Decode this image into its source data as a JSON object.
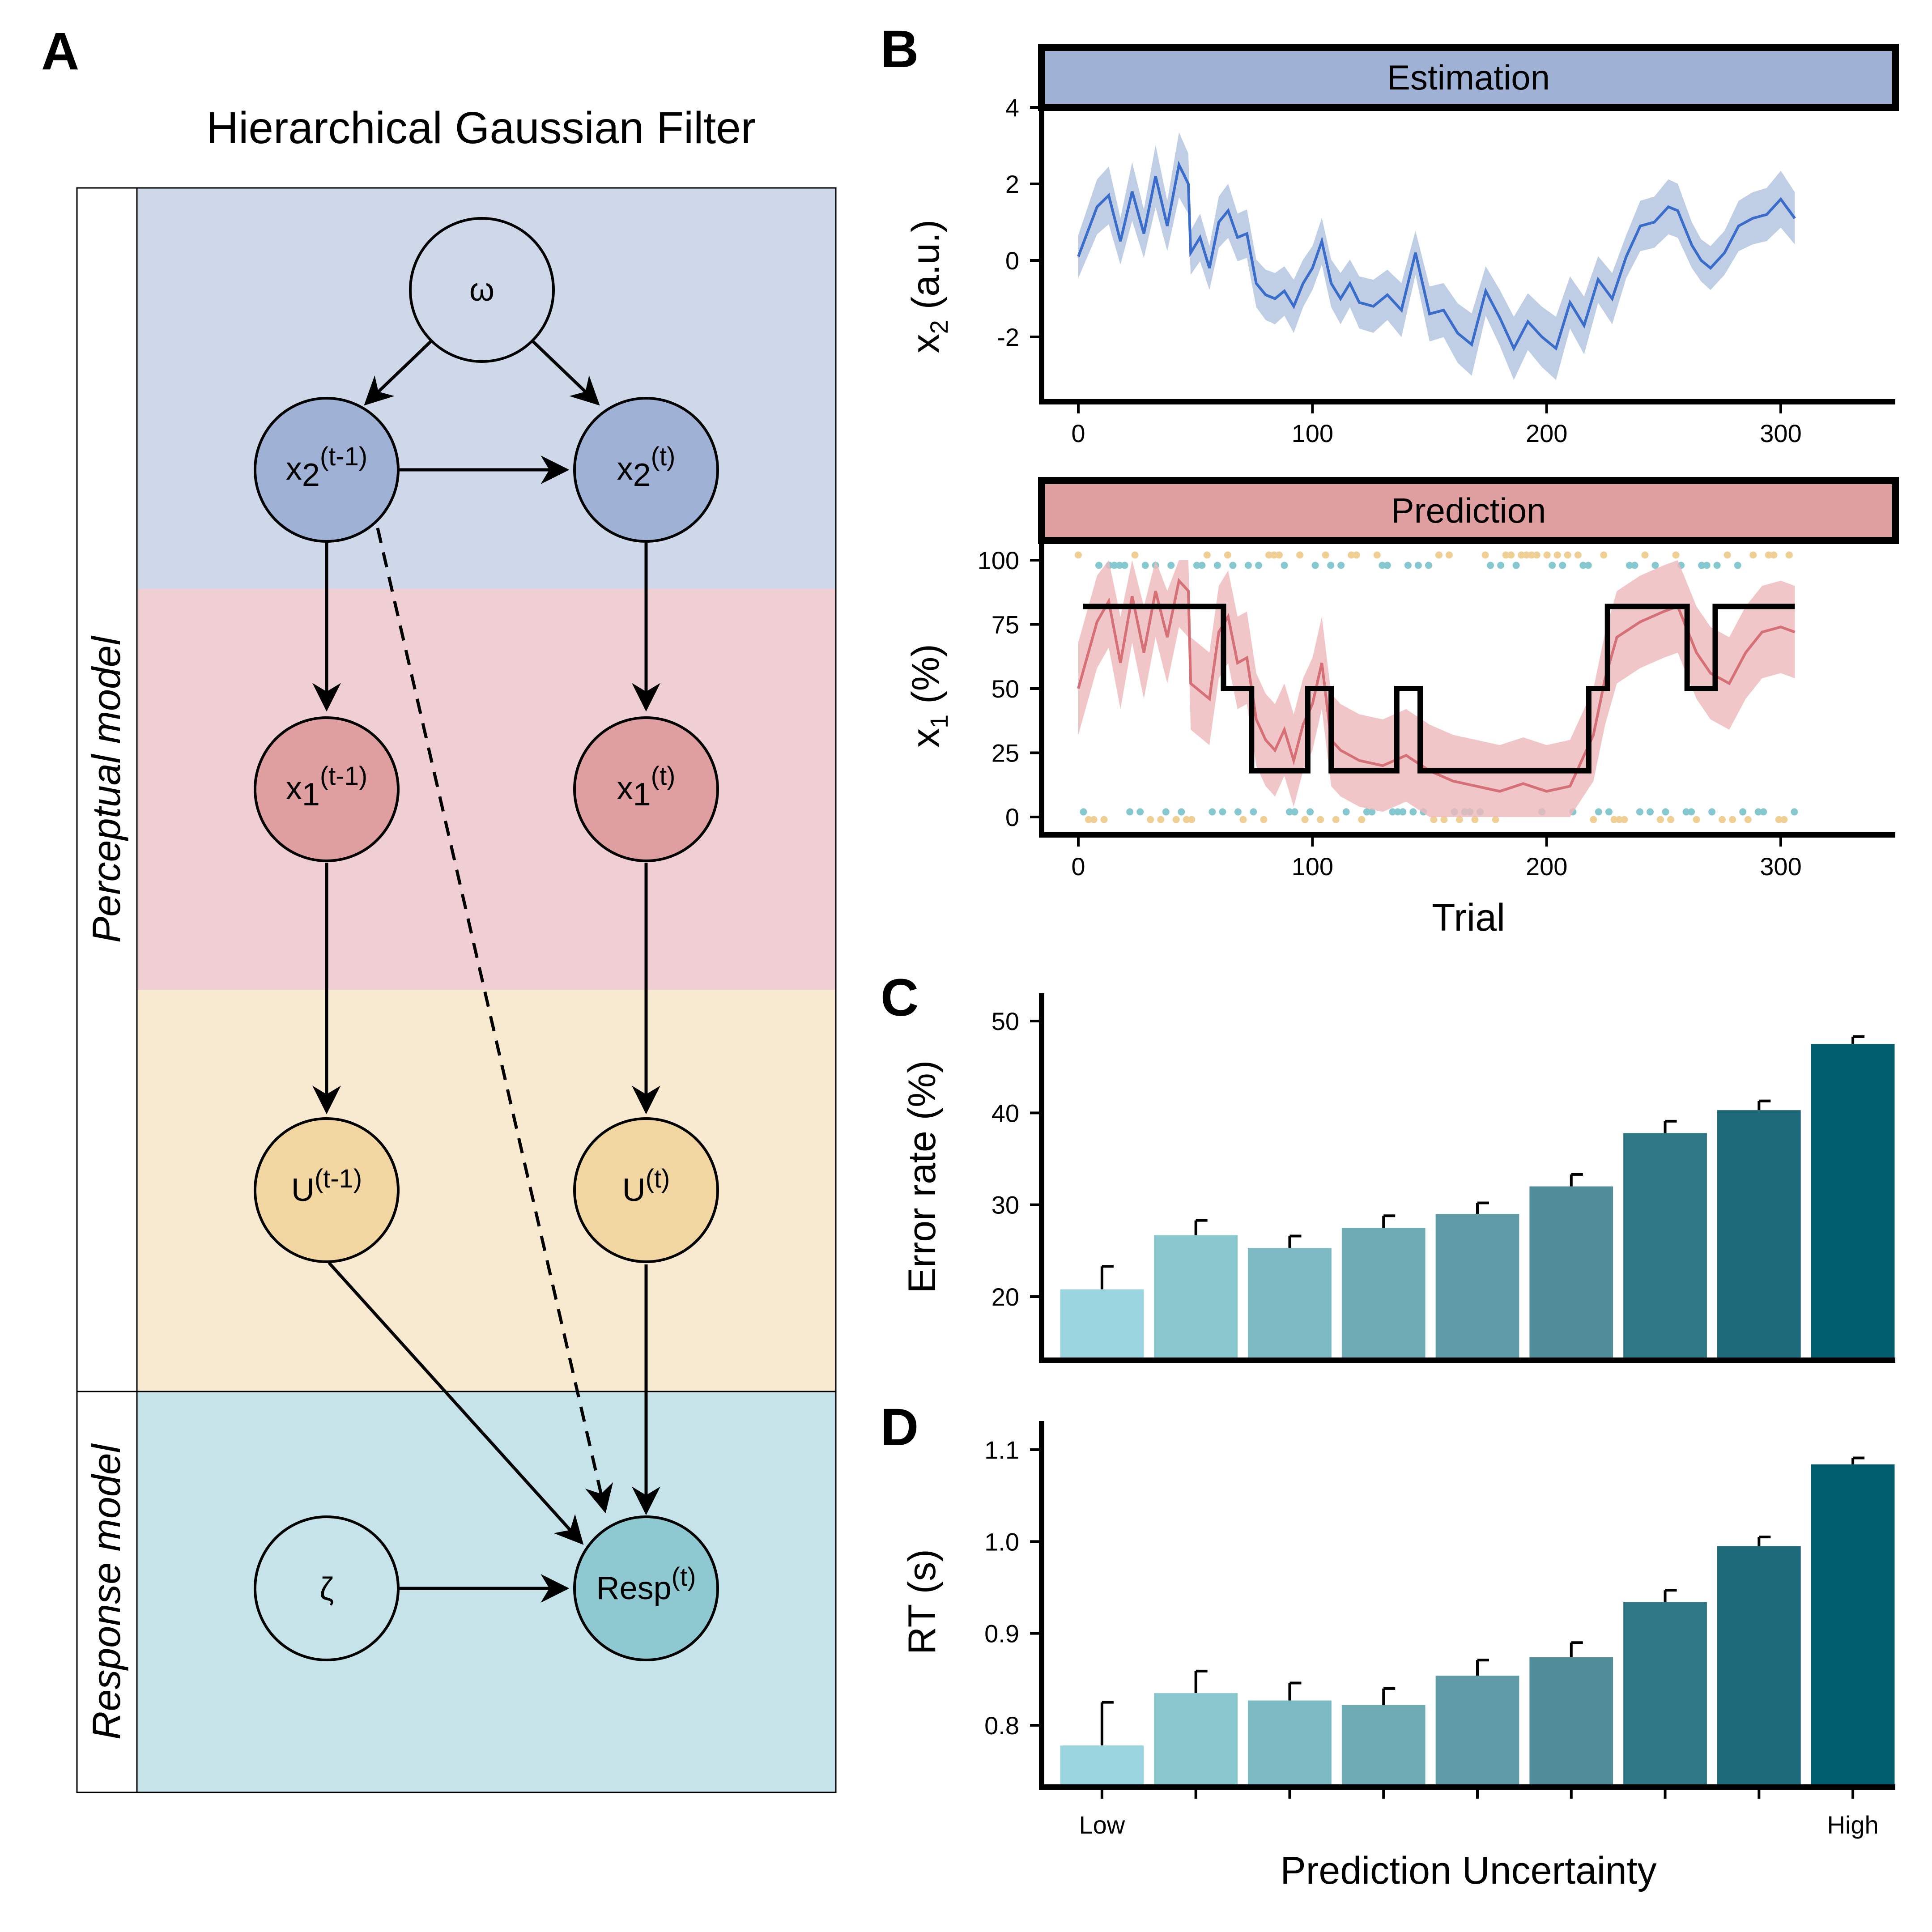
{
  "colors": {
    "estimation_band": "#cfd8e8",
    "prediction_band": "#efcfd3",
    "input_band": "#f8e9d1",
    "response_band": "#c5e3e8",
    "x2_node": "#9fb2d6",
    "x1_node": "#df9ea0",
    "u_node": "#f2d6a2",
    "resp_node": "#8ec8d0",
    "x2_line": "#3a6dc9",
    "x2_ribbon": "#a9bcdc",
    "x1_line": "#d47076",
    "x1_ribbon": "#eeb8bc",
    "dots_a": "#f0cf94",
    "dots_b": "#86c8cf",
    "bars": [
      "#9bd6e0",
      "#8ac8d0",
      "#7bbac2",
      "#6eabb5",
      "#5f9ca7",
      "#508d99",
      "#2f7785",
      "#1e6a7a",
      "#005e6e"
    ]
  },
  "panel_a": {
    "letter": "A",
    "title": "Hierarchical Gaussian Filter",
    "side_labels": {
      "perceptual": "Perceptual model",
      "response": "Response model"
    },
    "nodes": {
      "omega": "ω",
      "zeta": "ζ",
      "x2_prev": {
        "base": "x",
        "sub": "2",
        "sup": "(t-1)"
      },
      "x2_cur": {
        "base": "x",
        "sub": "2",
        "sup": "(t)"
      },
      "x1_prev": {
        "base": "x",
        "sub": "1",
        "sup": "(t-1)"
      },
      "x1_cur": {
        "base": "x",
        "sub": "1",
        "sup": "(t)"
      },
      "u_prev": {
        "base": "U",
        "sup": "(t-1)"
      },
      "u_cur": {
        "base": "U",
        "sup": "(t)"
      },
      "resp": {
        "base": "Resp",
        "sup": "(t)"
      }
    },
    "icons": [
      "arrow-icon",
      "dashed-arrow-icon"
    ]
  },
  "panel_b": {
    "letter": "B",
    "estimation": {
      "strip_label": "Estimation",
      "ylabel": {
        "base": "x",
        "sub": "2",
        "rest": " (a.u.)"
      },
      "yticks": [
        "4",
        "2",
        "0",
        "-2"
      ],
      "xticks": [
        "0",
        "100",
        "200",
        "300"
      ]
    },
    "prediction": {
      "strip_label": "Prediction",
      "ylabel": {
        "base": "x",
        "sub": "1",
        "rest": " (%)"
      },
      "yticks": [
        "100",
        "75",
        "50",
        "25",
        "0"
      ],
      "xticks": [
        "0",
        "100",
        "200",
        "300"
      ],
      "xlabel": "Trial"
    }
  },
  "panel_c": {
    "letter": "C",
    "ylabel": "Error rate (%)",
    "yticks": [
      "50",
      "40",
      "30",
      "20"
    ]
  },
  "panel_d": {
    "letter": "D",
    "ylabel": "RT (s)",
    "yticks": [
      "1.1",
      "1.0",
      "0.9",
      "0.8"
    ],
    "xtick_low": "Low",
    "xtick_high": "High",
    "xlabel": "Prediction Uncertainty"
  },
  "chart_data": [
    {
      "type": "line",
      "panel": "B-estimation",
      "xlim": [
        0,
        310
      ],
      "ylim": [
        -3.7,
        4
      ],
      "series": [
        {
          "x": [
            0,
            8,
            13,
            18,
            23,
            28,
            33,
            38,
            43,
            47,
            48,
            52,
            56,
            60,
            64,
            68,
            72,
            76,
            80,
            84,
            88,
            92,
            96,
            100,
            104,
            108,
            112,
            116,
            120,
            126,
            132,
            138,
            144,
            150,
            156,
            162,
            168,
            174,
            180,
            186,
            192,
            198,
            204,
            210,
            216,
            222,
            228,
            234,
            240,
            246,
            252,
            256,
            262,
            266,
            270,
            276,
            282,
            288,
            294,
            300,
            306
          ],
          "y": [
            0.1,
            1.4,
            1.7,
            0.5,
            1.8,
            0.7,
            2.2,
            0.9,
            2.5,
            2.0,
            0.2,
            0.6,
            -0.2,
            1.0,
            1.3,
            0.6,
            0.7,
            -0.6,
            -0.9,
            -1.0,
            -0.8,
            -1.2,
            -0.6,
            -0.2,
            0.5,
            -0.6,
            -1.0,
            -0.6,
            -1.1,
            -1.2,
            -0.9,
            -1.3,
            0.2,
            -1.4,
            -1.3,
            -1.9,
            -2.2,
            -0.8,
            -1.5,
            -2.3,
            -1.6,
            -2.0,
            -2.3,
            -1.1,
            -1.7,
            -0.5,
            -1.0,
            0.1,
            0.9,
            1.0,
            1.4,
            1.3,
            0.4,
            0.0,
            -0.2,
            0.2,
            0.9,
            1.1,
            1.2,
            1.6,
            1.1
          ]
        }
      ]
    },
    {
      "type": "line",
      "panel": "B-prediction",
      "xlim": [
        0,
        310
      ],
      "ylim": [
        -5,
        105
      ],
      "series": [
        {
          "name_hidden": "x1 estimate",
          "x": [
            0,
            8,
            13,
            18,
            23,
            28,
            33,
            38,
            43,
            47,
            48,
            56,
            60,
            64,
            68,
            72,
            76,
            80,
            84,
            88,
            92,
            96,
            100,
            104,
            108,
            112,
            120,
            130,
            140,
            150,
            160,
            170,
            180,
            190,
            200,
            210,
            220,
            225,
            230,
            240,
            250,
            256,
            264,
            270,
            278,
            285,
            292,
            300,
            306
          ],
          "y": [
            50,
            76,
            84,
            60,
            86,
            64,
            88,
            70,
            92,
            88,
            52,
            46,
            72,
            78,
            60,
            62,
            38,
            30,
            26,
            34,
            22,
            36,
            44,
            60,
            30,
            26,
            22,
            20,
            24,
            18,
            14,
            12,
            10,
            13,
            10,
            12,
            32,
            54,
            70,
            76,
            80,
            82,
            64,
            56,
            52,
            64,
            72,
            74,
            72
          ]
        },
        {
          "name_hidden": "true probability",
          "x": [
            2,
            62,
            62,
            74,
            74,
            98,
            98,
            108,
            108,
            136,
            136,
            146,
            146,
            218,
            218,
            226,
            226,
            260,
            260,
            272,
            272,
            306
          ],
          "y": [
            82,
            82,
            50,
            50,
            18,
            18,
            50,
            50,
            18,
            18,
            50,
            50,
            18,
            18,
            50,
            50,
            82,
            82,
            50,
            50,
            82,
            82
          ]
        }
      ]
    },
    {
      "type": "bar",
      "panel": "C",
      "categories": [
        "1",
        "2",
        "3",
        "4",
        "5",
        "6",
        "7",
        "8",
        "9"
      ],
      "values": [
        20.8,
        26.7,
        25.3,
        27.5,
        29.0,
        32.0,
        37.8,
        40.3,
        47.5
      ],
      "error": [
        2.5,
        1.6,
        1.3,
        1.3,
        1.2,
        1.3,
        1.3,
        1.0,
        0.8
      ],
      "ylim": [
        13.7,
        52.8
      ]
    },
    {
      "type": "bar",
      "panel": "D",
      "categories": [
        "1",
        "2",
        "3",
        "4",
        "5",
        "6",
        "7",
        "8",
        "9"
      ],
      "values": [
        0.778,
        0.835,
        0.827,
        0.822,
        0.854,
        0.874,
        0.934,
        0.995,
        1.084
      ],
      "error": [
        0.047,
        0.024,
        0.019,
        0.018,
        0.017,
        0.016,
        0.013,
        0.01,
        0.007
      ],
      "ylim": [
        0.732,
        1.125
      ]
    }
  ]
}
